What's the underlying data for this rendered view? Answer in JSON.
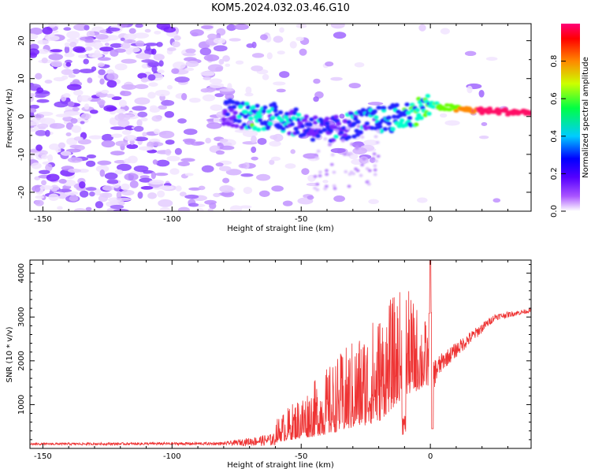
{
  "title": "KOM5.2024.032.03.46.G10",
  "chart_data": [
    {
      "type": "heatmap",
      "xlabel": "Height of straight line (km)",
      "ylabel": "Frequency (Hz)",
      "xlim": [
        -155,
        39
      ],
      "ylim": [
        -25,
        24.5
      ],
      "x_ticks": [
        -150,
        -100,
        -50,
        0
      ],
      "y_ticks": [
        20,
        10,
        0,
        -10,
        -20
      ],
      "colorbar": {
        "label": "Normalized spectral amplitude",
        "range": [
          0,
          1
        ],
        "ticks": [
          0.0,
          0.2,
          0.4,
          0.6,
          0.8
        ],
        "colors": [
          "#ffffff",
          "#7700ff",
          "#0000ff",
          "#00ffff",
          "#00ff00",
          "#ffff00",
          "#ff8800",
          "#ff0000",
          "#ff0088"
        ]
      },
      "signal_track": [
        {
          "x": -80,
          "f": 1.5,
          "a": 0.25
        },
        {
          "x": -70,
          "f": 0,
          "a": 0.45
        },
        {
          "x": -60,
          "f": 0,
          "a": 0.4
        },
        {
          "x": -50,
          "f": -2,
          "a": 0.35
        },
        {
          "x": -40,
          "f": -4,
          "a": 0.3
        },
        {
          "x": -30,
          "f": -2,
          "a": 0.35
        },
        {
          "x": -20,
          "f": -1,
          "a": 0.4
        },
        {
          "x": -10,
          "f": 0,
          "a": 0.45
        },
        {
          "x": 0,
          "f": 3,
          "a": 0.5
        },
        {
          "x": 10,
          "f": 2,
          "a": 0.7
        },
        {
          "x": 20,
          "f": 1.5,
          "a": 0.85
        },
        {
          "x": 39,
          "f": 1,
          "a": 0.9
        }
      ]
    },
    {
      "type": "line",
      "xlabel": "Height of straight line (km)",
      "ylabel": "SNR (10 * v/v)",
      "xlim": [
        -155,
        39
      ],
      "ylim": [
        0,
        4300
      ],
      "x_ticks": [
        -150,
        -100,
        -50,
        0
      ],
      "y_ticks": [
        1000,
        2000,
        3000,
        4000
      ],
      "series": [
        {
          "color": "#ee3333",
          "envelope": [
            {
              "x": -155,
              "base": 100,
              "noise": 50
            },
            {
              "x": -80,
              "base": 110,
              "noise": 70
            },
            {
              "x": -60,
              "base": 200,
              "noise": 300
            },
            {
              "x": -40,
              "base": 500,
              "noise": 900
            },
            {
              "x": -20,
              "base": 900,
              "noise": 1500
            },
            {
              "x": -10,
              "base": 1500,
              "noise": 1500
            },
            {
              "x": 0,
              "base": 1600,
              "noise": 800
            },
            {
              "x": 5,
              "base": 2000,
              "noise": 400
            },
            {
              "x": 15,
              "base": 2500,
              "noise": 300
            },
            {
              "x": 25,
              "base": 3000,
              "noise": 150
            },
            {
              "x": 39,
              "base": 3150,
              "noise": 100
            }
          ],
          "peak": {
            "x": 0,
            "y": 4300
          }
        }
      ]
    }
  ]
}
